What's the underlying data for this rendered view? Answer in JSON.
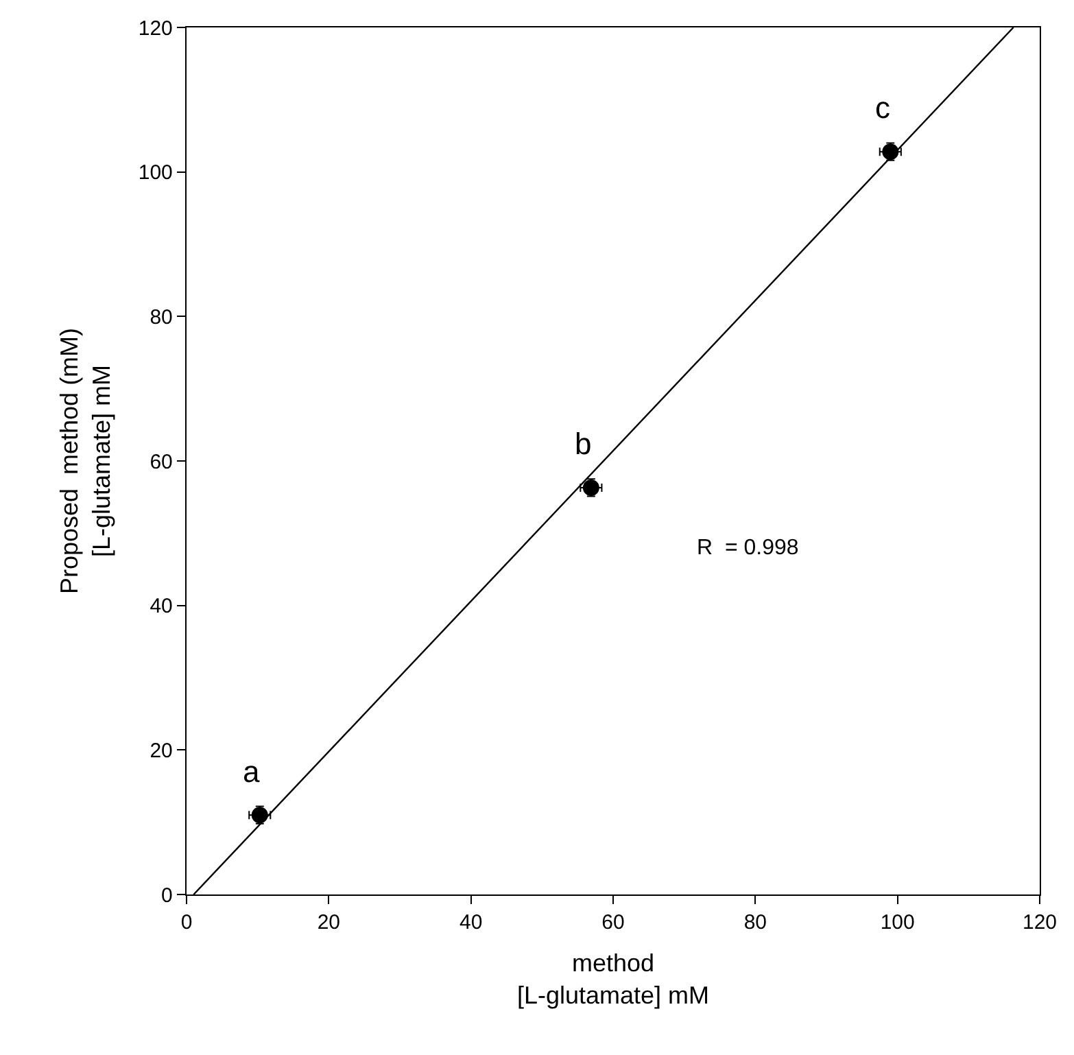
{
  "chart_data": {
    "type": "scatter",
    "xlabel": "method\n[L-glutamate] mM",
    "ylabel": "Proposed  method (mM)\n[L-glutamate] mM",
    "x": [
      10.3,
      56.9,
      99.0
    ],
    "series": [
      {
        "color": "#000000",
        "marker": "circle",
        "values": [
          11.0,
          56.3,
          102.8
        ],
        "errors": [
          1.2,
          1.2,
          1.2
        ],
        "xerrors": [
          1.5,
          1.5,
          1.5
        ]
      },
      {
        "type": "line",
        "color": "#000000",
        "marker": "none",
        "line_style": "solid",
        "x": [
          1.0,
          116.3
        ],
        "values": [
          0,
          120
        ]
      }
    ],
    "annotations": [
      {
        "text": "a",
        "x": 10.3,
        "y": 11.0
      },
      {
        "text": "b",
        "x": 56.9,
        "y": 56.3
      },
      {
        "text": "c",
        "x": 99.0,
        "y": 102.8
      },
      "R  = 0.998"
    ],
    "xlim": [
      0,
      120
    ],
    "xticks": [
      0,
      20,
      40,
      60,
      80,
      100,
      120
    ],
    "ylim": [
      0,
      120
    ],
    "yticks": [
      0,
      20,
      40,
      60,
      80,
      100,
      120
    ]
  }
}
